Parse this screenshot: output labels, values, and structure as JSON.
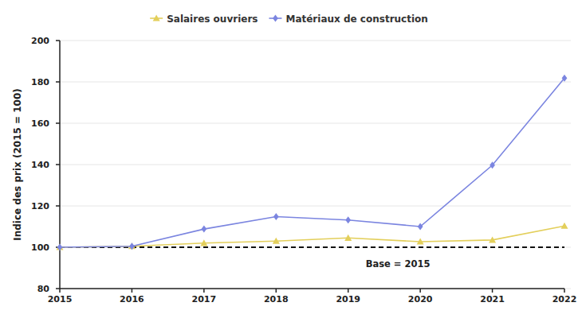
{
  "chart_data": {
    "type": "line",
    "y_label": "Indice des prix (2015 = 100)",
    "x": [
      2015,
      2016,
      2017,
      2018,
      2019,
      2020,
      2021,
      2022
    ],
    "series": [
      {
        "name": "Salaires ouvriers",
        "color": "#e3cf5b",
        "marker": "triangle",
        "values": [
          100,
          100.5,
          102,
          103,
          104.5,
          102.7,
          103.5,
          110.3
        ]
      },
      {
        "name": "Matériaux de construction",
        "color": "#7b85e0",
        "marker": "diamond",
        "values": [
          100,
          100.5,
          108.8,
          114.8,
          113.2,
          110,
          139.7,
          181.8
        ]
      }
    ],
    "xlim": [
      2015,
      2022
    ],
    "xticks": [
      2015,
      2016,
      2017,
      2018,
      2019,
      2020,
      2021,
      2022
    ],
    "ylim": [
      80,
      200
    ],
    "yticks": [
      80,
      100,
      120,
      140,
      160,
      180,
      200
    ],
    "grid": true,
    "legend": "top",
    "reference_line": {
      "value": 100,
      "label": "Base = 2015",
      "line_style": "dashed"
    }
  }
}
